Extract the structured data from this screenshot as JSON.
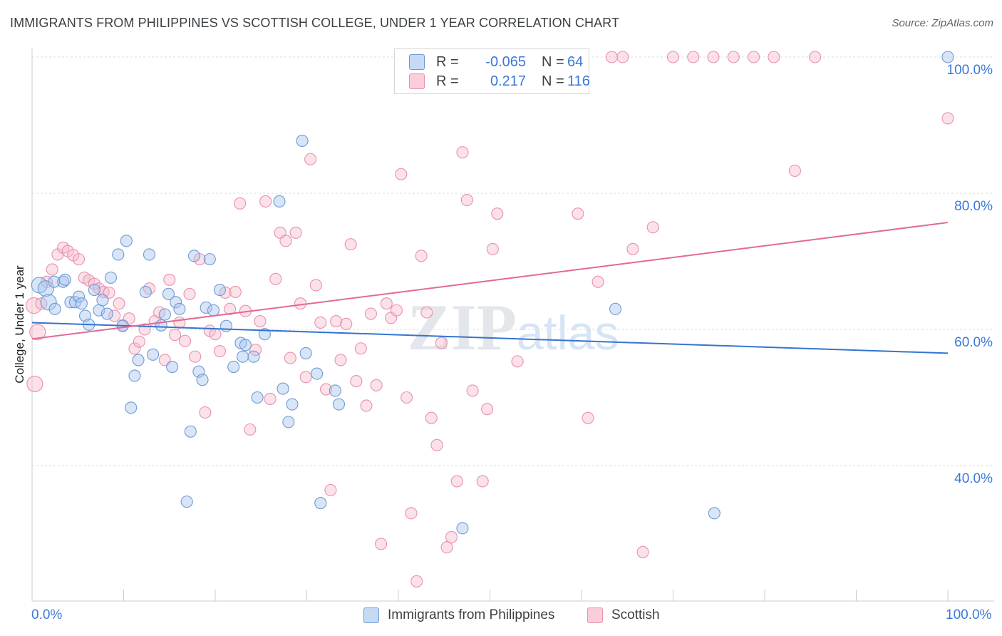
{
  "title": "IMMIGRANTS FROM PHILIPPINES VS SCOTTISH COLLEGE, UNDER 1 YEAR CORRELATION CHART",
  "source": "Source: ZipAtlas.com",
  "watermark": "ZIPatlas",
  "legend": {
    "r_label": "R =",
    "n_label": "N =",
    "rows": [
      {
        "r": "-0.065",
        "n": "64"
      },
      {
        "r": "0.217",
        "n": "116"
      }
    ]
  },
  "bottom_legend": [
    "Immigrants from Philippines",
    "Scottish"
  ],
  "x_tick_labels": {
    "min": "0.0%",
    "max": "100.0%"
  },
  "y_tick_labels": [
    "100.0%",
    "80.0%",
    "60.0%",
    "40.0%"
  ],
  "colors": {
    "blue_fill": "#a9c6ee",
    "blue_stroke": "#6f9ad6",
    "blue_line": "#3474d0",
    "pink_fill": "#f6bccd",
    "pink_stroke": "#e891ad",
    "pink_line": "#e26a93",
    "tick_text": "#3b78d8",
    "grid": "#dadce0"
  },
  "chart_data": {
    "type": "scatter",
    "title": "IMMIGRANTS FROM PHILIPPINES VS SCOTTISH COLLEGE, UNDER 1 YEAR CORRELATION CHART",
    "xlabel": "",
    "ylabel": "College, Under 1 year",
    "xlim": [
      0,
      100
    ],
    "ylim": [
      20,
      102
    ],
    "y_ticks": [
      40,
      60,
      80,
      100
    ],
    "grid": true,
    "legend_position": "top-center",
    "series": [
      {
        "name": "Immigrants from Philippines",
        "r": -0.065,
        "n": 64,
        "trend": {
          "x": [
            0,
            100
          ],
          "y": [
            61.0,
            56.5
          ]
        },
        "points": [
          [
            0.8,
            66.5
          ],
          [
            1.5,
            66.0
          ],
          [
            1.8,
            64.0
          ],
          [
            2.4,
            67.0
          ],
          [
            2.5,
            63.0
          ],
          [
            3.4,
            67.0
          ],
          [
            3.6,
            67.3
          ],
          [
            4.2,
            64.0
          ],
          [
            4.7,
            64.0
          ],
          [
            5.1,
            64.8
          ],
          [
            5.4,
            63.8
          ],
          [
            5.8,
            62.0
          ],
          [
            6.2,
            60.7
          ],
          [
            6.8,
            65.8
          ],
          [
            7.3,
            62.8
          ],
          [
            7.7,
            64.3
          ],
          [
            8.2,
            62.3
          ],
          [
            8.6,
            67.6
          ],
          [
            9.4,
            71.0
          ],
          [
            9.9,
            60.5
          ],
          [
            10.3,
            73.0
          ],
          [
            10.8,
            48.5
          ],
          [
            11.2,
            53.2
          ],
          [
            11.6,
            55.5
          ],
          [
            12.4,
            65.5
          ],
          [
            12.8,
            71.0
          ],
          [
            13.2,
            56.3
          ],
          [
            14.1,
            60.6
          ],
          [
            14.5,
            62.2
          ],
          [
            14.9,
            65.2
          ],
          [
            15.3,
            54.5
          ],
          [
            15.7,
            64.0
          ],
          [
            16.1,
            63.0
          ],
          [
            16.9,
            34.7
          ],
          [
            17.3,
            45.0
          ],
          [
            17.7,
            70.8
          ],
          [
            18.2,
            53.8
          ],
          [
            18.6,
            52.6
          ],
          [
            19.0,
            63.2
          ],
          [
            19.4,
            70.3
          ],
          [
            19.8,
            62.8
          ],
          [
            20.5,
            65.8
          ],
          [
            21.2,
            60.5
          ],
          [
            22.0,
            54.5
          ],
          [
            22.8,
            58.0
          ],
          [
            23.0,
            56.0
          ],
          [
            23.3,
            57.7
          ],
          [
            24.2,
            56.0
          ],
          [
            24.6,
            50.0
          ],
          [
            25.4,
            59.3
          ],
          [
            27.0,
            78.8
          ],
          [
            27.4,
            51.3
          ],
          [
            28.0,
            46.4
          ],
          [
            28.4,
            49.0
          ],
          [
            29.5,
            87.7
          ],
          [
            29.9,
            56.5
          ],
          [
            31.1,
            53.5
          ],
          [
            31.5,
            34.5
          ],
          [
            33.1,
            51.0
          ],
          [
            33.5,
            49.0
          ],
          [
            47.0,
            30.8
          ],
          [
            63.7,
            63.0
          ],
          [
            74.5,
            33.0
          ],
          [
            100.0,
            100.0
          ]
        ]
      },
      {
        "name": "Scottish",
        "r": 0.217,
        "n": 116,
        "trend": {
          "x": [
            0,
            100
          ],
          "y": [
            58.6,
            75.7
          ]
        },
        "points": [
          [
            0.2,
            63.5
          ],
          [
            0.3,
            52.0
          ],
          [
            0.6,
            59.6
          ],
          [
            1.0,
            63.8
          ],
          [
            1.6,
            67.0
          ],
          [
            2.2,
            68.8
          ],
          [
            2.8,
            71.0
          ],
          [
            3.4,
            72.0
          ],
          [
            3.9,
            71.5
          ],
          [
            4.5,
            70.9
          ],
          [
            5.1,
            70.3
          ],
          [
            5.7,
            67.6
          ],
          [
            6.2,
            67.2
          ],
          [
            6.8,
            66.7
          ],
          [
            7.3,
            66.0
          ],
          [
            7.8,
            65.5
          ],
          [
            8.4,
            65.4
          ],
          [
            9.0,
            62.0
          ],
          [
            9.5,
            63.8
          ],
          [
            9.9,
            60.6
          ],
          [
            10.6,
            61.6
          ],
          [
            11.2,
            57.2
          ],
          [
            11.7,
            58.2
          ],
          [
            12.3,
            60.0
          ],
          [
            12.8,
            66.0
          ],
          [
            13.4,
            61.2
          ],
          [
            13.9,
            62.5
          ],
          [
            14.5,
            55.5
          ],
          [
            15.0,
            67.3
          ],
          [
            15.6,
            59.2
          ],
          [
            16.1,
            61.0
          ],
          [
            16.7,
            58.3
          ],
          [
            17.2,
            65.2
          ],
          [
            17.8,
            56.0
          ],
          [
            18.3,
            70.3
          ],
          [
            18.9,
            47.8
          ],
          [
            19.4,
            59.8
          ],
          [
            20.0,
            59.3
          ],
          [
            20.5,
            56.8
          ],
          [
            21.1,
            65.4
          ],
          [
            21.6,
            63.0
          ],
          [
            22.2,
            65.5
          ],
          [
            22.7,
            78.5
          ],
          [
            23.3,
            62.7
          ],
          [
            23.8,
            45.3
          ],
          [
            24.4,
            57.0
          ],
          [
            24.9,
            61.2
          ],
          [
            25.5,
            78.8
          ],
          [
            26.0,
            49.8
          ],
          [
            26.6,
            67.4
          ],
          [
            27.1,
            74.2
          ],
          [
            27.7,
            73.0
          ],
          [
            28.2,
            55.8
          ],
          [
            28.8,
            74.2
          ],
          [
            29.3,
            63.8
          ],
          [
            29.9,
            53.0
          ],
          [
            30.4,
            85.0
          ],
          [
            31.0,
            66.5
          ],
          [
            31.5,
            61.0
          ],
          [
            32.1,
            51.2
          ],
          [
            32.6,
            36.4
          ],
          [
            33.2,
            61.2
          ],
          [
            33.7,
            55.5
          ],
          [
            34.3,
            60.8
          ],
          [
            34.8,
            72.5
          ],
          [
            35.4,
            52.4
          ],
          [
            35.9,
            57.2
          ],
          [
            36.5,
            48.8
          ],
          [
            37.0,
            62.3
          ],
          [
            37.6,
            51.8
          ],
          [
            38.1,
            28.5
          ],
          [
            38.7,
            63.8
          ],
          [
            39.2,
            61.7
          ],
          [
            39.8,
            62.8
          ],
          [
            40.3,
            82.8
          ],
          [
            40.9,
            50.0
          ],
          [
            41.4,
            33.0
          ],
          [
            42.0,
            23.0
          ],
          [
            42.5,
            70.8
          ],
          [
            43.1,
            62.5
          ],
          [
            43.6,
            47.0
          ],
          [
            44.2,
            43.0
          ],
          [
            44.7,
            58.0
          ],
          [
            45.3,
            28.0
          ],
          [
            45.8,
            29.5
          ],
          [
            46.4,
            37.7
          ],
          [
            47.0,
            86.0
          ],
          [
            47.5,
            79.0
          ],
          [
            48.1,
            51.0
          ],
          [
            48.6,
            100.0
          ],
          [
            49.2,
            37.7
          ],
          [
            49.7,
            48.3
          ],
          [
            50.3,
            71.8
          ],
          [
            50.8,
            77.0
          ],
          [
            51.9,
            100.0
          ],
          [
            53.0,
            55.3
          ],
          [
            54.1,
            100.0
          ],
          [
            56.3,
            100.0
          ],
          [
            58.5,
            100.0
          ],
          [
            59.6,
            77.0
          ],
          [
            60.7,
            47.0
          ],
          [
            61.8,
            67.0
          ],
          [
            63.3,
            100.0
          ],
          [
            64.5,
            100.0
          ],
          [
            65.6,
            71.8
          ],
          [
            66.7,
            27.3
          ],
          [
            67.8,
            75.0
          ],
          [
            70.0,
            100.0
          ],
          [
            72.2,
            100.0
          ],
          [
            74.4,
            100.0
          ],
          [
            76.6,
            100.0
          ],
          [
            78.8,
            100.0
          ],
          [
            81.0,
            100.0
          ],
          [
            83.3,
            83.3
          ],
          [
            85.5,
            100.0
          ],
          [
            100.0,
            91.0
          ]
        ]
      }
    ]
  }
}
